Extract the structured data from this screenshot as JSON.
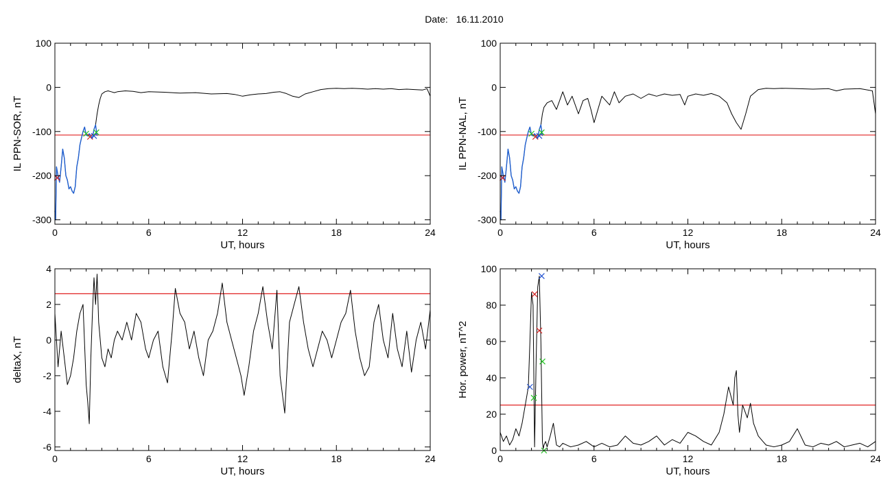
{
  "figure": {
    "date_label": "Date:",
    "date_value": "16.11.2010"
  },
  "chart_data": [
    {
      "type": "line",
      "ylabel": "IL PPN-SOR, nT",
      "xlabel": "UT, hours",
      "xlim": [
        0,
        24
      ],
      "ylim": [
        -310,
        100
      ],
      "xticks": [
        0,
        6,
        12,
        18,
        24
      ],
      "yticks": [
        100,
        0,
        -100,
        -200,
        -300
      ],
      "threshold": -108,
      "series": [
        {
          "color": "#000000",
          "x": [
            0,
            0.05,
            0.1,
            0.2,
            0.3,
            0.4,
            0.5,
            0.6,
            0.7,
            0.8,
            0.9,
            1.0,
            1.1,
            1.2,
            1.3,
            1.4,
            1.5,
            1.6,
            1.7,
            1.8,
            1.9,
            2.0,
            2.1,
            2.2,
            2.3,
            2.4,
            2.5,
            2.6,
            2.7,
            2.8,
            2.9,
            3.0,
            3.2,
            3.4,
            3.6,
            3.8,
            4.0,
            4.5,
            5.0,
            5.5,
            6.0,
            7.0,
            8.0,
            9.0,
            10.0,
            11.0,
            11.5,
            12.0,
            12.5,
            13.0,
            13.5,
            14.0,
            14.4,
            14.8,
            15.2,
            15.6,
            16.0,
            16.5,
            17.0,
            17.5,
            18.0,
            18.5,
            19.0,
            19.5,
            20.0,
            20.5,
            21.0,
            21.5,
            22.0,
            22.5,
            23.0,
            23.5,
            23.8,
            24.0
          ],
          "y": [
            -280,
            -300,
            -180,
            -200,
            -215,
            -180,
            -140,
            -160,
            -200,
            -210,
            -230,
            -225,
            -235,
            -240,
            -225,
            -180,
            -160,
            -130,
            -115,
            -100,
            -90,
            -108,
            -110,
            -105,
            -110,
            -115,
            -95,
            -85,
            -60,
            -40,
            -25,
            -15,
            -10,
            -8,
            -10,
            -12,
            -10,
            -8,
            -9,
            -12,
            -10,
            -11,
            -13,
            -12,
            -15,
            -14,
            -16,
            -20,
            -17,
            -15,
            -14,
            -11,
            -10,
            -14,
            -20,
            -23,
            -15,
            -10,
            -5,
            -3,
            -2,
            -3,
            -2,
            -3,
            -4,
            -3,
            -4,
            -3,
            -5,
            -4,
            -5,
            -6,
            -3,
            -20
          ]
        },
        {
          "color": "#1f5fd0",
          "x": [
            0,
            0.05,
            0.1,
            0.2,
            0.3,
            0.4,
            0.5,
            0.6,
            0.7,
            0.8,
            0.9,
            1.0,
            1.1,
            1.2,
            1.3,
            1.4,
            1.5,
            1.6,
            1.7,
            1.8,
            1.9,
            2.0,
            2.1,
            2.2,
            2.3,
            2.4,
            2.5,
            2.6,
            2.7
          ],
          "y": [
            -280,
            -300,
            -180,
            -200,
            -215,
            -180,
            -140,
            -160,
            -200,
            -210,
            -230,
            -225,
            -235,
            -240,
            -225,
            -180,
            -160,
            -130,
            -115,
            -100,
            -90,
            -108,
            -110,
            -105,
            -110,
            -115,
            -95,
            -85,
            -110
          ]
        }
      ],
      "markers": [
        {
          "x": 2.0,
          "y": -105,
          "color": "#20c020"
        },
        {
          "x": 2.25,
          "y": -112,
          "color": "#d02020"
        },
        {
          "x": 2.5,
          "y": -110,
          "color": "#2050d0"
        },
        {
          "x": 2.65,
          "y": -102,
          "color": "#20c020"
        },
        {
          "x": 0.15,
          "y": -205,
          "color": "#d02020"
        }
      ]
    },
    {
      "type": "line",
      "ylabel": "IL PPN-NAL, nT",
      "xlabel": "UT, hours",
      "xlim": [
        0,
        24
      ],
      "ylim": [
        -310,
        100
      ],
      "xticks": [
        0,
        6,
        12,
        18,
        24
      ],
      "yticks": [
        100,
        0,
        -100,
        -200,
        -300
      ],
      "threshold": -108,
      "series": [
        {
          "color": "#000000",
          "x": [
            0,
            0.05,
            0.1,
            0.2,
            0.3,
            0.4,
            0.5,
            0.6,
            0.7,
            0.8,
            0.9,
            1.0,
            1.1,
            1.2,
            1.3,
            1.4,
            1.5,
            1.6,
            1.7,
            1.8,
            1.9,
            2.0,
            2.1,
            2.2,
            2.3,
            2.4,
            2.5,
            2.6,
            2.7,
            2.8,
            3.0,
            3.3,
            3.6,
            4.0,
            4.3,
            4.6,
            5.0,
            5.3,
            5.6,
            5.8,
            6.0,
            6.5,
            7.0,
            7.3,
            7.6,
            8.0,
            8.5,
            9.0,
            9.5,
            10.0,
            10.5,
            11.0,
            11.5,
            11.8,
            12.0,
            12.5,
            13.0,
            13.5,
            14.0,
            14.5,
            14.8,
            15.1,
            15.4,
            15.7,
            16.0,
            16.5,
            17.0,
            17.5,
            18.0,
            19.0,
            20.0,
            21.0,
            21.5,
            22.0,
            23.0,
            23.8,
            24.0
          ],
          "y": [
            -280,
            -300,
            -180,
            -200,
            -215,
            -180,
            -140,
            -160,
            -200,
            -210,
            -230,
            -225,
            -235,
            -240,
            -225,
            -180,
            -160,
            -130,
            -115,
            -100,
            -90,
            -108,
            -110,
            -105,
            -110,
            -115,
            -95,
            -85,
            -60,
            -45,
            -35,
            -30,
            -50,
            -10,
            -40,
            -20,
            -60,
            -30,
            -25,
            -50,
            -80,
            -20,
            -40,
            -10,
            -35,
            -20,
            -15,
            -25,
            -15,
            -20,
            -15,
            -18,
            -16,
            -40,
            -20,
            -15,
            -18,
            -14,
            -20,
            -35,
            -60,
            -80,
            -95,
            -60,
            -20,
            -5,
            -2,
            -3,
            -2,
            -3,
            -4,
            -3,
            -8,
            -4,
            -3,
            -8,
            -60
          ]
        },
        {
          "color": "#1f5fd0",
          "x": [
            0,
            0.05,
            0.1,
            0.2,
            0.3,
            0.4,
            0.5,
            0.6,
            0.7,
            0.8,
            0.9,
            1.0,
            1.1,
            1.2,
            1.3,
            1.4,
            1.5,
            1.6,
            1.7,
            1.8,
            1.9,
            2.0,
            2.1,
            2.2,
            2.3,
            2.4,
            2.5,
            2.6,
            2.7
          ],
          "y": [
            -280,
            -300,
            -180,
            -200,
            -215,
            -180,
            -140,
            -160,
            -200,
            -210,
            -230,
            -225,
            -235,
            -240,
            -225,
            -180,
            -160,
            -130,
            -115,
            -100,
            -90,
            -108,
            -110,
            -105,
            -110,
            -115,
            -95,
            -85,
            -110
          ]
        }
      ],
      "markers": [
        {
          "x": 2.0,
          "y": -105,
          "color": "#20c020"
        },
        {
          "x": 2.25,
          "y": -112,
          "color": "#d02020"
        },
        {
          "x": 2.5,
          "y": -110,
          "color": "#2050d0"
        },
        {
          "x": 2.65,
          "y": -102,
          "color": "#20c020"
        },
        {
          "x": 0.15,
          "y": -205,
          "color": "#d02020"
        }
      ]
    },
    {
      "type": "line",
      "ylabel": "deltaX, nT",
      "xlabel": "UT, hours",
      "xlim": [
        0,
        24
      ],
      "ylim": [
        -6.2,
        4
      ],
      "xticks": [
        0,
        6,
        12,
        18,
        24
      ],
      "yticks": [
        4,
        2,
        0,
        -2,
        -4,
        -6
      ],
      "threshold": 2.6,
      "series": [
        {
          "color": "#000000",
          "x": [
            0,
            0.2,
            0.4,
            0.6,
            0.8,
            1.0,
            1.2,
            1.4,
            1.6,
            1.8,
            2.0,
            2.1,
            2.2,
            2.3,
            2.4,
            2.5,
            2.6,
            2.7,
            2.8,
            3.0,
            3.2,
            3.4,
            3.6,
            3.8,
            4.0,
            4.3,
            4.6,
            4.9,
            5.2,
            5.5,
            5.8,
            6.0,
            6.3,
            6.6,
            6.9,
            7.2,
            7.5,
            7.7,
            8.0,
            8.3,
            8.6,
            8.9,
            9.2,
            9.5,
            9.8,
            10.1,
            10.4,
            10.7,
            11.0,
            11.3,
            11.6,
            11.9,
            12.1,
            12.4,
            12.7,
            13.0,
            13.3,
            13.6,
            13.9,
            14.2,
            14.4,
            14.7,
            15.0,
            15.3,
            15.6,
            15.9,
            16.2,
            16.5,
            16.8,
            17.1,
            17.4,
            17.7,
            18.0,
            18.3,
            18.6,
            18.9,
            19.2,
            19.5,
            19.8,
            20.1,
            20.4,
            20.7,
            21.0,
            21.3,
            21.6,
            21.9,
            22.2,
            22.5,
            22.8,
            23.1,
            23.4,
            23.7,
            24.0
          ],
          "y": [
            1.5,
            -1.5,
            0.5,
            -1.0,
            -2.5,
            -2.0,
            -1.0,
            0.5,
            1.5,
            2.0,
            -2.5,
            -3.5,
            -4.7,
            -1.0,
            1.5,
            3.5,
            2.0,
            3.7,
            1.0,
            -1.0,
            -1.5,
            -0.5,
            -1.0,
            0.0,
            0.5,
            0.0,
            1.0,
            0.0,
            1.5,
            1.0,
            -0.5,
            -1.0,
            0.0,
            0.5,
            -1.5,
            -2.4,
            0.5,
            2.9,
            1.5,
            1.0,
            -0.5,
            0.5,
            -1.0,
            -2.0,
            0.0,
            0.5,
            1.5,
            3.2,
            1.0,
            0.0,
            -1.0,
            -2.0,
            -3.1,
            -1.5,
            0.5,
            1.5,
            3.0,
            1.0,
            -0.5,
            2.8,
            -2.0,
            -4.1,
            1.0,
            2.0,
            3.0,
            1.0,
            -0.5,
            -1.5,
            -0.5,
            0.5,
            0.0,
            -1.0,
            0.0,
            1.0,
            1.5,
            2.8,
            0.5,
            -1.0,
            -2.0,
            -1.5,
            1.0,
            2.0,
            0.0,
            -1.0,
            1.5,
            -0.5,
            -1.5,
            0.5,
            -1.8,
            0.0,
            1.0,
            -0.5,
            1.7
          ]
        }
      ],
      "markers": []
    },
    {
      "type": "line",
      "ylabel": "Hor. power, nT^2",
      "xlabel": "UT, hours",
      "xlim": [
        0,
        24
      ],
      "ylim": [
        0,
        100
      ],
      "xticks": [
        0,
        6,
        12,
        18,
        24
      ],
      "yticks": [
        100,
        80,
        60,
        40,
        20,
        0
      ],
      "threshold": 25,
      "series": [
        {
          "color": "#000000",
          "x": [
            0,
            0.2,
            0.4,
            0.6,
            0.8,
            1.0,
            1.2,
            1.4,
            1.6,
            1.8,
            1.9,
            2.0,
            2.1,
            2.2,
            2.3,
            2.35,
            2.4,
            2.5,
            2.6,
            2.7,
            2.75,
            2.8,
            2.9,
            3.0,
            3.2,
            3.4,
            3.6,
            3.8,
            4.0,
            4.5,
            5.0,
            5.5,
            6.0,
            6.5,
            7.0,
            7.5,
            8.0,
            8.5,
            9.0,
            9.5,
            10.0,
            10.5,
            11.0,
            11.5,
            12.0,
            12.5,
            13.0,
            13.5,
            14.0,
            14.3,
            14.6,
            14.9,
            15.0,
            15.1,
            15.2,
            15.3,
            15.5,
            15.8,
            16.0,
            16.2,
            16.5,
            16.8,
            17.0,
            17.5,
            18.0,
            18.5,
            19.0,
            19.5,
            20.0,
            20.5,
            21.0,
            21.5,
            22.0,
            22.5,
            23.0,
            23.5,
            24.0
          ],
          "y": [
            10,
            5,
            8,
            3,
            6,
            12,
            8,
            15,
            25,
            35,
            60,
            87,
            80,
            2,
            50,
            70,
            90,
            96,
            60,
            5,
            1,
            3,
            5,
            2,
            8,
            15,
            3,
            2,
            4,
            2,
            3,
            5,
            2,
            4,
            2,
            3,
            8,
            4,
            3,
            5,
            8,
            3,
            6,
            4,
            10,
            8,
            5,
            3,
            10,
            20,
            35,
            25,
            40,
            44,
            20,
            10,
            25,
            18,
            26,
            15,
            8,
            5,
            3,
            2,
            3,
            5,
            12,
            3,
            2,
            4,
            3,
            5,
            2,
            3,
            4,
            2,
            5
          ]
        }
      ],
      "markers": [
        {
          "x": 1.9,
          "y": 35,
          "color": "#2050d0"
        },
        {
          "x": 2.15,
          "y": 29,
          "color": "#20c020"
        },
        {
          "x": 2.2,
          "y": 86,
          "color": "#d02020"
        },
        {
          "x": 2.5,
          "y": 66,
          "color": "#d02020"
        },
        {
          "x": 2.65,
          "y": 96,
          "color": "#2050d0"
        },
        {
          "x": 2.7,
          "y": 49,
          "color": "#20c020"
        },
        {
          "x": 2.8,
          "y": 0,
          "color": "#20c020"
        }
      ]
    }
  ]
}
